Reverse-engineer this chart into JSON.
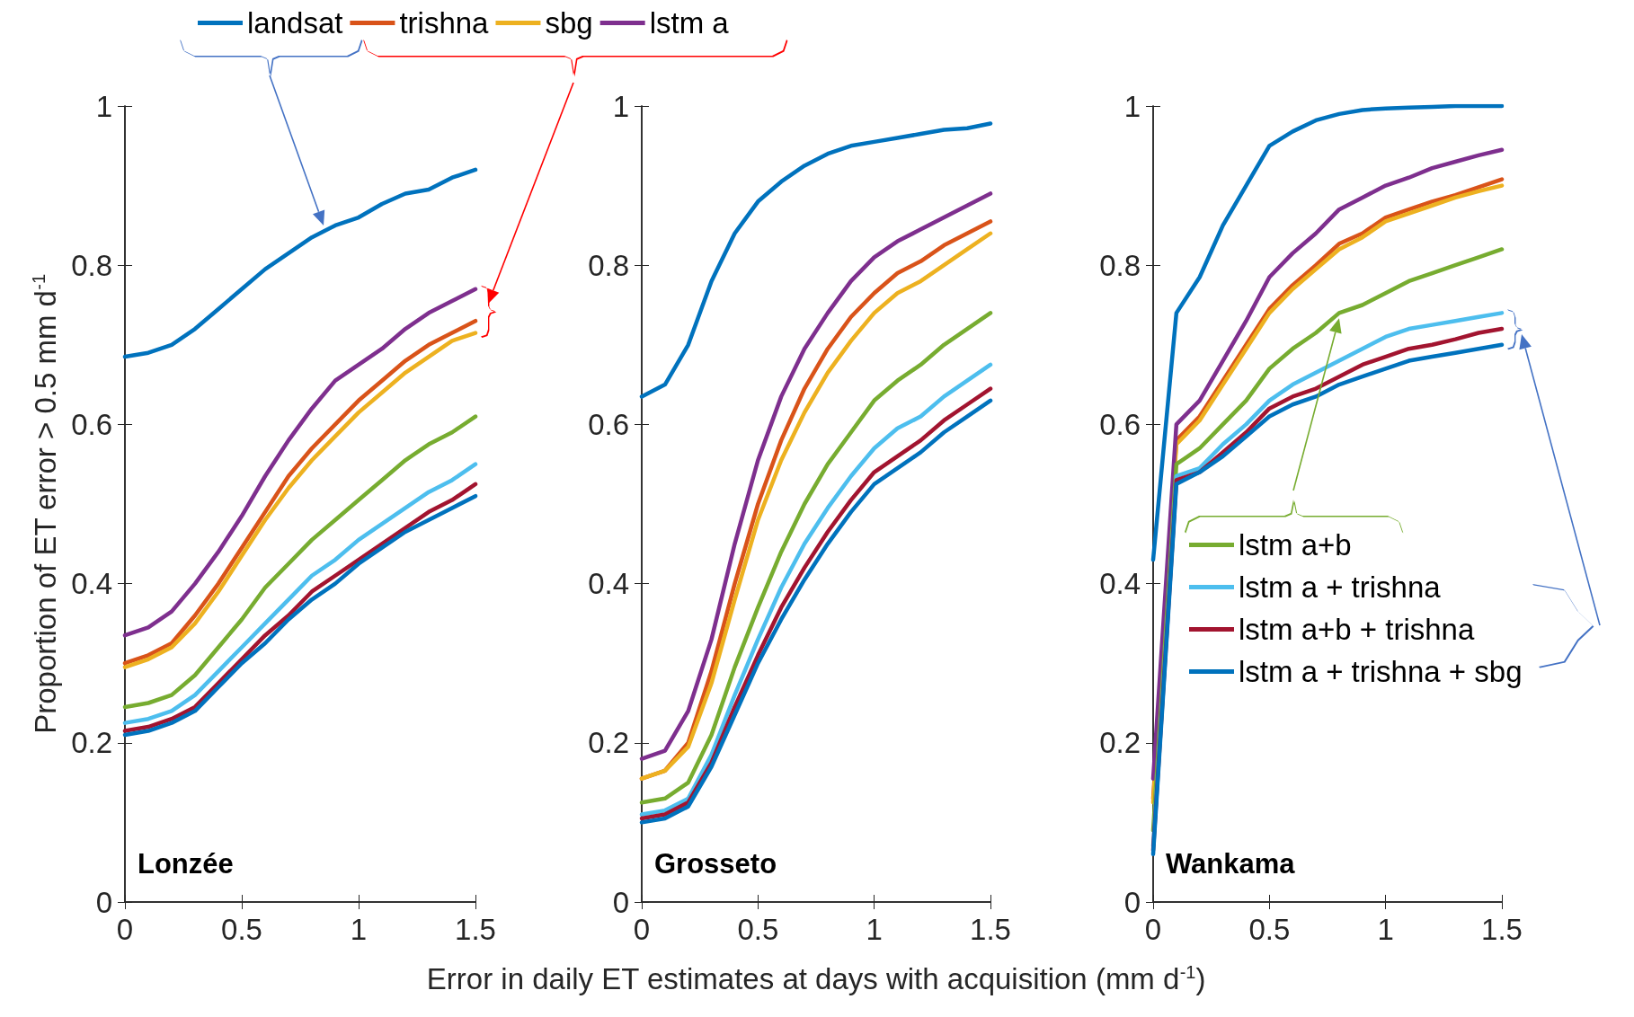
{
  "chart_data": [
    {
      "type": "line",
      "ylabel": "Proportion of ET error > 0.5 mm d$^{-1}$",
      "annotations": [
        "Lonzée"
      ],
      "legend": "top",
      "grid": false,
      "marker": "none",
      "line_style": "solid",
      "x": [
        0,
        0.1,
        0.2,
        0.3,
        0.4,
        0.5,
        0.6,
        0.7,
        0.8,
        0.9,
        1,
        1.1,
        1.2,
        1.3,
        1.4,
        1.5
      ],
      "xlim": [
        0,
        1.5
      ],
      "xticks": [
        0,
        0.5,
        1,
        1.5
      ],
      "ylim": [
        0,
        1
      ],
      "yticks": [
        0,
        0.2,
        0.4,
        0.6,
        0.8,
        1
      ],
      "series": [
        {
          "name": "landsat",
          "color": "#0072bd",
          "values": [
            0.685,
            0.69,
            0.7,
            0.72,
            0.745,
            0.77,
            0.795,
            0.815,
            0.835,
            0.85,
            0.86,
            0.877,
            0.89,
            0.895,
            0.91,
            0.92
          ]
        },
        {
          "name": "trishna",
          "color": "#d95319",
          "values": [
            0.3,
            0.31,
            0.325,
            0.36,
            0.4,
            0.445,
            0.49,
            0.535,
            0.57,
            0.6,
            0.63,
            0.655,
            0.68,
            0.7,
            0.715,
            0.73
          ]
        },
        {
          "name": "sbg",
          "color": "#edb120",
          "values": [
            0.295,
            0.305,
            0.32,
            0.35,
            0.39,
            0.435,
            0.48,
            0.52,
            0.555,
            0.585,
            0.615,
            0.64,
            0.665,
            0.685,
            0.705,
            0.715
          ]
        },
        {
          "name": "lstm a",
          "color": "#7e2f8e",
          "values": [
            0.335,
            0.345,
            0.365,
            0.4,
            0.44,
            0.485,
            0.535,
            0.58,
            0.62,
            0.655,
            0.675,
            0.695,
            0.72,
            0.74,
            0.755,
            0.77
          ]
        },
        {
          "color": "#77ac30",
          "values": [
            0.245,
            0.25,
            0.26,
            0.285,
            0.32,
            0.355,
            0.395,
            0.425,
            0.455,
            0.48,
            0.505,
            0.53,
            0.555,
            0.575,
            0.59,
            0.61
          ]
        },
        {
          "color": "#4dbeee",
          "values": [
            0.225,
            0.23,
            0.24,
            0.26,
            0.29,
            0.32,
            0.35,
            0.38,
            0.41,
            0.43,
            0.455,
            0.475,
            0.495,
            0.515,
            0.53,
            0.55
          ]
        },
        {
          "color": "#a2142f",
          "values": [
            0.215,
            0.22,
            0.23,
            0.245,
            0.275,
            0.305,
            0.335,
            0.36,
            0.39,
            0.41,
            0.43,
            0.45,
            0.47,
            0.49,
            0.505,
            0.525
          ]
        },
        {
          "color": "#0072bd",
          "values": [
            0.21,
            0.215,
            0.225,
            0.24,
            0.27,
            0.3,
            0.325,
            0.355,
            0.38,
            0.4,
            0.425,
            0.445,
            0.465,
            0.48,
            0.495,
            0.51
          ]
        }
      ]
    },
    {
      "type": "line",
      "xlabel": "Error in daily ET estimates at days with acquisition (mm d$^{-1}$)",
      "annotations": [
        "Grosseto"
      ],
      "grid": false,
      "marker": "none",
      "line_style": "solid",
      "x": [
        0,
        0.1,
        0.2,
        0.3,
        0.4,
        0.5,
        0.6,
        0.7,
        0.8,
        0.9,
        1,
        1.1,
        1.2,
        1.3,
        1.4,
        1.5
      ],
      "xlim": [
        0,
        1.5
      ],
      "xticks": [
        0,
        0.5,
        1,
        1.5
      ],
      "ylim": [
        0,
        1
      ],
      "yticks": [
        0,
        0.2,
        0.4,
        0.6,
        0.8,
        1
      ],
      "series": [
        {
          "color": "#0072bd",
          "values": [
            0.635,
            0.65,
            0.7,
            0.78,
            0.84,
            0.88,
            0.905,
            0.925,
            0.94,
            0.95,
            0.955,
            0.96,
            0.965,
            0.97,
            0.972,
            0.978
          ]
        },
        {
          "color": "#d95319",
          "values": [
            0.155,
            0.165,
            0.2,
            0.29,
            0.4,
            0.5,
            0.58,
            0.645,
            0.695,
            0.735,
            0.765,
            0.79,
            0.805,
            0.825,
            0.84,
            0.855
          ]
        },
        {
          "color": "#edb120",
          "values": [
            0.155,
            0.165,
            0.195,
            0.275,
            0.38,
            0.48,
            0.555,
            0.615,
            0.665,
            0.705,
            0.74,
            0.765,
            0.78,
            0.8,
            0.82,
            0.84
          ]
        },
        {
          "color": "#7e2f8e",
          "values": [
            0.18,
            0.19,
            0.24,
            0.33,
            0.45,
            0.555,
            0.635,
            0.695,
            0.74,
            0.78,
            0.81,
            0.83,
            0.845,
            0.86,
            0.875,
            0.89
          ]
        },
        {
          "color": "#77ac30",
          "values": [
            0.125,
            0.13,
            0.15,
            0.21,
            0.295,
            0.37,
            0.44,
            0.5,
            0.55,
            0.59,
            0.63,
            0.655,
            0.675,
            0.7,
            0.72,
            0.74
          ]
        },
        {
          "color": "#4dbeee",
          "values": [
            0.11,
            0.115,
            0.13,
            0.185,
            0.26,
            0.33,
            0.395,
            0.45,
            0.495,
            0.535,
            0.57,
            0.595,
            0.61,
            0.635,
            0.655,
            0.675
          ]
        },
        {
          "color": "#a2142f",
          "values": [
            0.105,
            0.11,
            0.125,
            0.175,
            0.245,
            0.31,
            0.37,
            0.42,
            0.465,
            0.505,
            0.54,
            0.56,
            0.58,
            0.605,
            0.625,
            0.645
          ]
        },
        {
          "color": "#0072bd",
          "values": [
            0.1,
            0.105,
            0.12,
            0.17,
            0.235,
            0.3,
            0.355,
            0.405,
            0.45,
            0.49,
            0.525,
            0.545,
            0.565,
            0.59,
            0.61,
            0.63
          ]
        }
      ]
    },
    {
      "type": "line",
      "annotations": [
        "Wankama"
      ],
      "legend": "bottom right",
      "grid": false,
      "marker": "none",
      "line_style": "solid",
      "x": [
        0,
        0.1,
        0.2,
        0.3,
        0.4,
        0.5,
        0.6,
        0.7,
        0.8,
        0.9,
        1,
        1.1,
        1.2,
        1.3,
        1.4,
        1.5
      ],
      "xlim": [
        0,
        1.5
      ],
      "xticks": [
        0,
        0.5,
        1,
        1.5
      ],
      "ylim": [
        0,
        1
      ],
      "yticks": [
        0,
        0.2,
        0.4,
        0.6,
        0.8,
        1
      ],
      "series": [
        {
          "color": "#0072bd",
          "values": [
            0.43,
            0.74,
            0.785,
            0.85,
            0.9,
            0.95,
            0.968,
            0.982,
            0.99,
            0.995,
            0.997,
            0.998,
            0.999,
            1,
            1,
            1
          ]
        },
        {
          "color": "#d95319",
          "values": [
            0.13,
            0.58,
            0.61,
            0.655,
            0.7,
            0.745,
            0.775,
            0.8,
            0.827,
            0.84,
            0.86,
            0.87,
            0.88,
            0.888,
            0.898,
            0.908
          ]
        },
        {
          "color": "#edb120",
          "values": [
            0.125,
            0.575,
            0.605,
            0.65,
            0.695,
            0.74,
            0.77,
            0.795,
            0.82,
            0.835,
            0.855,
            0.865,
            0.875,
            0.885,
            0.893,
            0.9
          ]
        },
        {
          "color": "#7e2f8e",
          "values": [
            0.155,
            0.6,
            0.63,
            0.68,
            0.73,
            0.785,
            0.815,
            0.84,
            0.87,
            0.885,
            0.9,
            0.91,
            0.922,
            0.93,
            0.938,
            0.945
          ]
        },
        {
          "name": "lstm a+b",
          "color": "#77ac30",
          "values": [
            0.09,
            0.55,
            0.57,
            0.6,
            0.63,
            0.67,
            0.695,
            0.715,
            0.74,
            0.75,
            0.765,
            0.78,
            0.79,
            0.8,
            0.81,
            0.82
          ]
        },
        {
          "name": "lstm a + trishna",
          "color": "#4dbeee",
          "values": [
            0.07,
            0.535,
            0.545,
            0.575,
            0.6,
            0.63,
            0.65,
            0.665,
            0.68,
            0.695,
            0.71,
            0.72,
            0.725,
            0.73,
            0.735,
            0.74
          ]
        },
        {
          "name": "lstm a+b + trishna",
          "color": "#a2142f",
          "values": [
            0.065,
            0.53,
            0.54,
            0.565,
            0.59,
            0.62,
            0.635,
            0.645,
            0.66,
            0.675,
            0.685,
            0.695,
            0.7,
            0.707,
            0.715,
            0.72
          ]
        },
        {
          "name": "lstm a + trishna + sbg",
          "color": "#0072bd",
          "values": [
            0.06,
            0.525,
            0.54,
            0.56,
            0.585,
            0.61,
            0.625,
            0.635,
            0.65,
            0.66,
            0.67,
            0.68,
            0.685,
            0.69,
            0.695,
            0.7
          ]
        }
      ]
    }
  ]
}
